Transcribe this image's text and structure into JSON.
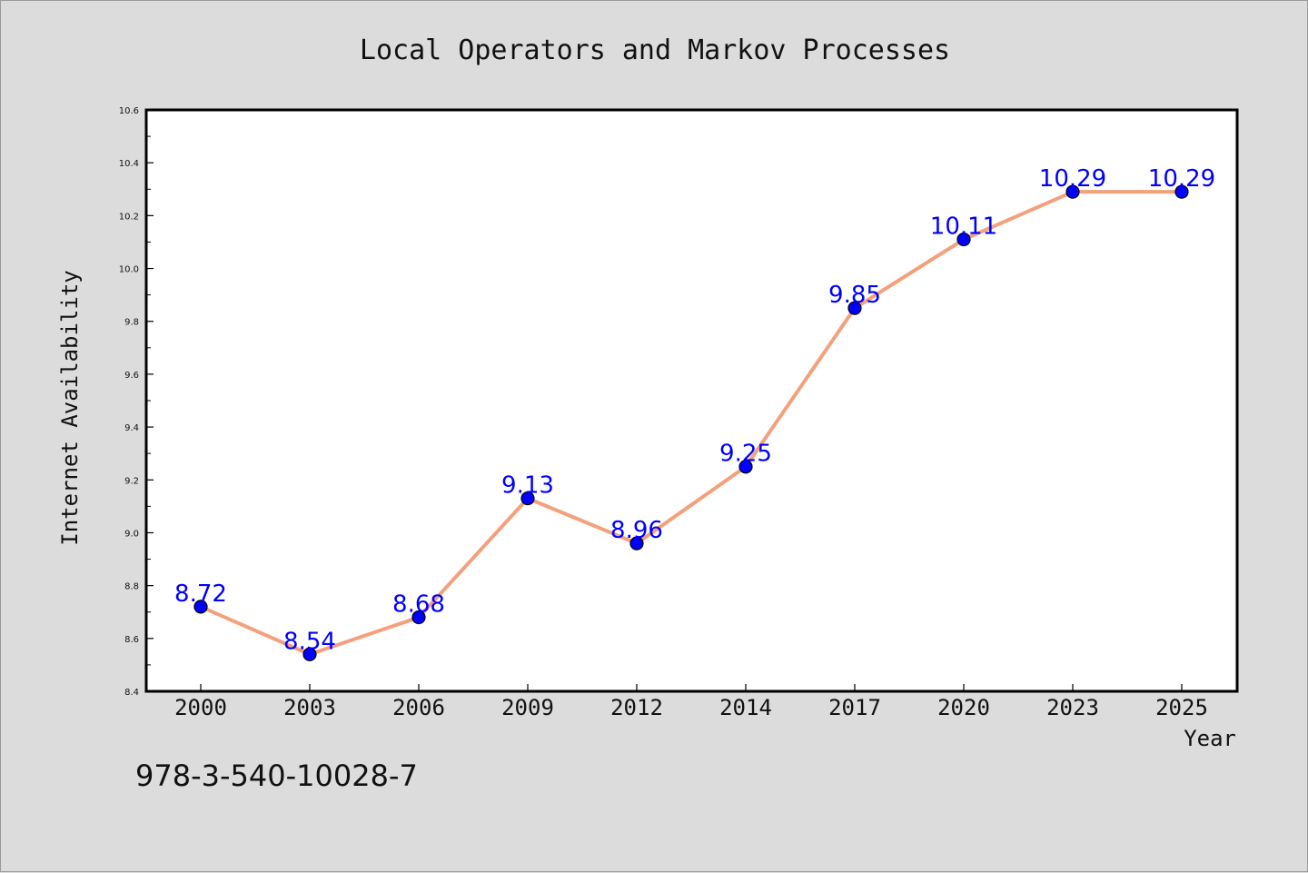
{
  "colors": {
    "background": "#dcdcdc",
    "plot_area": "#ffffff",
    "line": "#f4a07c",
    "marker": "#0000ff",
    "data_label": "#0000ff",
    "text": "#111111"
  },
  "chart_data": {
    "type": "line",
    "title": "Local Operators and Markov Processes",
    "xlabel": "Year",
    "ylabel": "Internet Availability",
    "categories": [
      "2000",
      "2003",
      "2006",
      "2009",
      "2012",
      "2014",
      "2017",
      "2020",
      "2023",
      "2025"
    ],
    "series": [
      {
        "values": [
          8.72,
          8.54,
          8.68,
          9.13,
          8.96,
          9.25,
          9.85,
          10.11,
          10.29,
          10.29
        ]
      }
    ],
    "data_labels": [
      "8.72",
      "8.54",
      "8.68",
      "9.13",
      "8.96",
      "9.25",
      "9.85",
      "10.11",
      "10.29",
      "10.29"
    ],
    "ylim": [
      8.4,
      10.6
    ],
    "yticks": [
      "8.4",
      "8.6",
      "8.8",
      "9.0",
      "9.2",
      "9.4",
      "9.6",
      "9.8",
      "10.0",
      "10.2",
      "10.4",
      "10.6"
    ],
    "grid": false,
    "legend": "none"
  },
  "footer": {
    "isbn": "978-3-540-10028-7"
  }
}
